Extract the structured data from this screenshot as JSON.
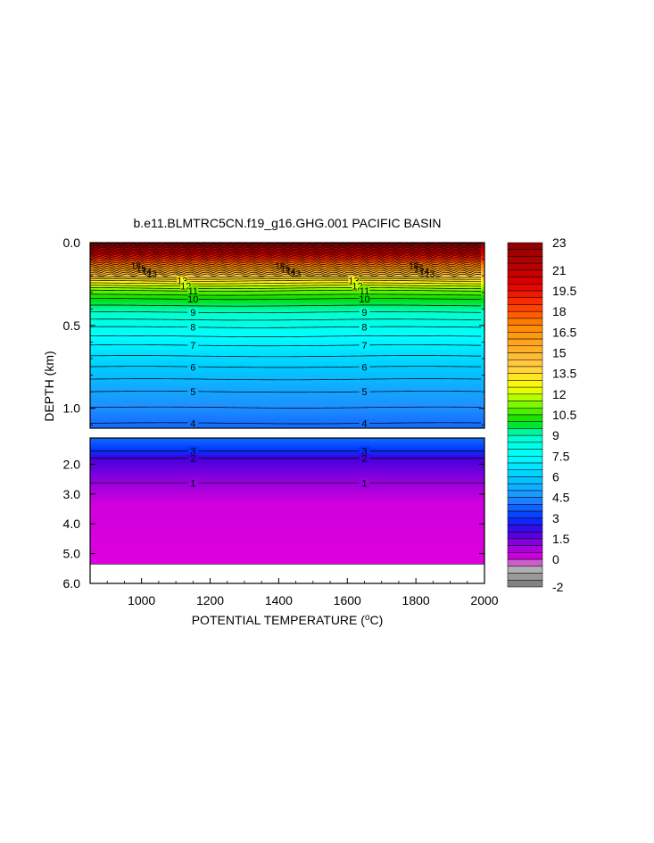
{
  "chart_data": {
    "type": "heatmap",
    "title": "b.e11.BLMTRC5CN.f19_g16.GHG.001 PACIFIC BASIN",
    "xlabel": "POTENTIAL TEMPERATURE (",
    "xlabel_sup": "o",
    "xlabel_end": "C)",
    "ylabel": "DEPTH (km)",
    "xlim": [
      850,
      2000
    ],
    "x_ticks": [
      1000,
      1200,
      1400,
      1600,
      1800,
      2000
    ],
    "x_ticklabels": [
      "1000",
      "1200",
      "1400",
      "1600",
      "1800",
      "2000"
    ],
    "upper_panel": {
      "ylim": [
        0.0,
        1.12
      ],
      "y_ticks": [
        0.0,
        0.5,
        1.0
      ],
      "y_ticklabels": [
        "0.0",
        "0.5",
        "1.0"
      ]
    },
    "lower_panel": {
      "ylim": [
        1.12,
        6.0
      ],
      "y_ticks": [
        2.0,
        3.0,
        4.0,
        5.0,
        6.0
      ],
      "y_ticklabels": [
        "2.0",
        "3.0",
        "4.0",
        "5.0",
        "6.0"
      ],
      "data_bottom_km": 5.35
    },
    "contour_interval": 0.5,
    "labeled_contours": [
      {
        "value": 13,
        "depth_km": 0.23
      },
      {
        "value": 12,
        "depth_km": 0.26
      },
      {
        "value": 11,
        "depth_km": 0.29
      },
      {
        "value": 10,
        "depth_km": 0.34
      },
      {
        "value": 9,
        "depth_km": 0.42
      },
      {
        "value": 8,
        "depth_km": 0.51
      },
      {
        "value": 7,
        "depth_km": 0.62
      },
      {
        "value": 6,
        "depth_km": 0.75
      },
      {
        "value": 5,
        "depth_km": 0.9
      },
      {
        "value": 4,
        "depth_km": 1.09
      },
      {
        "value": 3,
        "depth_km": 1.55
      },
      {
        "value": 2,
        "depth_km": 1.8
      },
      {
        "value": 1,
        "depth_km": 2.63
      }
    ],
    "near_surface_labels": [
      "18",
      "15",
      "14",
      "13"
    ],
    "label_x_positions": [
      1150,
      1650
    ],
    "colorbar": {
      "min": -2,
      "max": 23,
      "labels": [
        "23",
        "21",
        "19.5",
        "18",
        "16.5",
        "15",
        "13.5",
        "12",
        "10.5",
        "9",
        "7.5",
        "6",
        "4.5",
        "3",
        "1.5",
        "0",
        "-2"
      ],
      "label_values": [
        23,
        21,
        19.5,
        18,
        16.5,
        15,
        13.5,
        12,
        10.5,
        9,
        7.5,
        6,
        4.5,
        3,
        1.5,
        0,
        -2
      ],
      "stops": [
        {
          "v": 23,
          "c": "#8b0000"
        },
        {
          "v": 20,
          "c": "#dd0000"
        },
        {
          "v": 18.5,
          "c": "#ff3300"
        },
        {
          "v": 17,
          "c": "#ff8800"
        },
        {
          "v": 14,
          "c": "#ffcc44"
        },
        {
          "v": 12.5,
          "c": "#ffff00"
        },
        {
          "v": 11.5,
          "c": "#99ff00"
        },
        {
          "v": 10,
          "c": "#00dd00"
        },
        {
          "v": 9,
          "c": "#00ffcc"
        },
        {
          "v": 7.5,
          "c": "#00ffff"
        },
        {
          "v": 6,
          "c": "#00ccff"
        },
        {
          "v": 4.5,
          "c": "#1e90ff"
        },
        {
          "v": 3,
          "c": "#0033ff"
        },
        {
          "v": 2,
          "c": "#4400dd"
        },
        {
          "v": 1,
          "c": "#9900dd"
        },
        {
          "v": 0,
          "c": "#dd00dd"
        },
        {
          "v": -0.5,
          "c": "#bbbbbb"
        },
        {
          "v": -2,
          "c": "#777777"
        }
      ]
    },
    "missing_color": "#ffffff"
  }
}
